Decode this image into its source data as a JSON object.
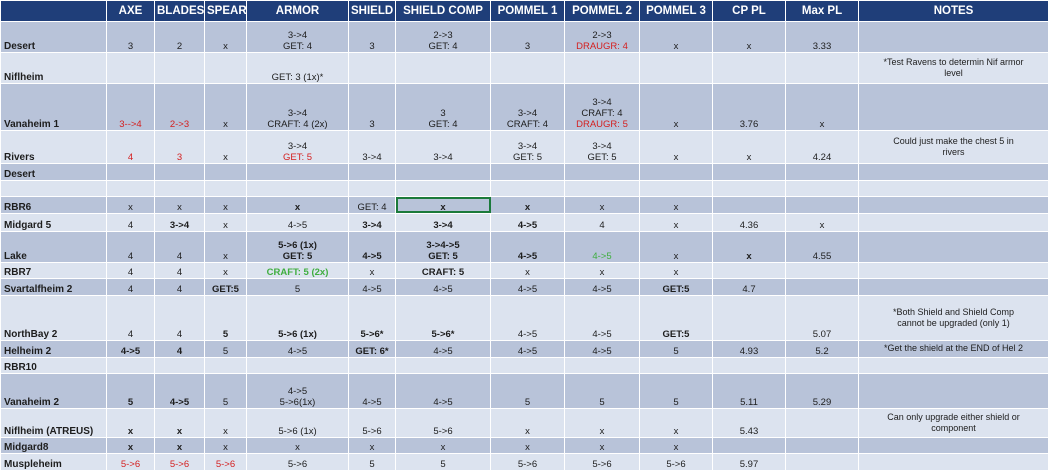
{
  "header": [
    "",
    "AXE",
    "BLADES",
    "SPEAR",
    "ARMOR",
    "SHIELD",
    "SHIELD COMP",
    "POMMEL 1",
    "POMMEL 2",
    "POMMEL 3",
    "CP PL",
    "Max PL",
    "NOTES"
  ],
  "rows": [
    {
      "name": "Desert",
      "cells": [
        {
          "lines": [
            "3"
          ]
        },
        {
          "lines": [
            "2"
          ]
        },
        {
          "lines": [
            "x"
          ]
        },
        {
          "lines": [
            "3->4",
            "GET: 4"
          ]
        },
        {
          "lines": [
            "3"
          ]
        },
        {
          "lines": [
            "2->3",
            "GET: 4"
          ]
        },
        {
          "lines": [
            "3"
          ]
        },
        {
          "lines": [
            "2->3",
            "DRAUGR: 4"
          ],
          "colors": [
            "",
            "red"
          ]
        },
        {
          "lines": [
            "x"
          ]
        },
        {
          "lines": [
            "x"
          ]
        },
        {
          "lines": [
            "3.33"
          ]
        },
        {
          "lines": []
        }
      ]
    },
    {
      "name": "Niflheim",
      "cells": [
        {
          "lines": []
        },
        {
          "lines": []
        },
        {
          "lines": []
        },
        {
          "lines": [
            "GET: 3 (1x)*"
          ]
        },
        {
          "lines": []
        },
        {
          "lines": []
        },
        {
          "lines": []
        },
        {
          "lines": []
        },
        {
          "lines": []
        },
        {
          "lines": []
        },
        {
          "lines": []
        },
        {
          "lines": [
            "*Test Ravens to determin Nif armor",
            "level"
          ]
        }
      ]
    },
    {
      "name": "Vanaheim 1",
      "cells": [
        {
          "lines": [
            "3-->4"
          ],
          "colors": [
            "red"
          ]
        },
        {
          "lines": [
            "2->3"
          ],
          "colors": [
            "red"
          ]
        },
        {
          "lines": [
            "x"
          ]
        },
        {
          "lines": [
            "3->4",
            "CRAFT: 4 (2x)"
          ]
        },
        {
          "lines": [
            "3"
          ]
        },
        {
          "lines": [
            "3",
            "GET: 4"
          ]
        },
        {
          "lines": [
            "3->4",
            "CRAFT: 4"
          ]
        },
        {
          "lines": [
            "3->4",
            "CRAFT: 4",
            "DRAUGR: 5"
          ],
          "colors": [
            "",
            "",
            "red"
          ]
        },
        {
          "lines": [
            "x"
          ]
        },
        {
          "lines": [
            "3.76"
          ]
        },
        {
          "lines": [
            "x"
          ]
        },
        {
          "lines": []
        }
      ]
    },
    {
      "name": "Rivers",
      "cells": [
        {
          "lines": [
            "4"
          ],
          "colors": [
            "red"
          ]
        },
        {
          "lines": [
            "3"
          ],
          "colors": [
            "red"
          ]
        },
        {
          "lines": [
            "x"
          ]
        },
        {
          "lines": [
            "3->4",
            "GET: 5"
          ],
          "colors": [
            "",
            "red"
          ]
        },
        {
          "lines": [
            "3->4"
          ]
        },
        {
          "lines": [
            "3->4"
          ]
        },
        {
          "lines": [
            "3->4",
            "GET: 5"
          ]
        },
        {
          "lines": [
            "3->4",
            "GET: 5"
          ]
        },
        {
          "lines": [
            "x"
          ]
        },
        {
          "lines": [
            "x"
          ]
        },
        {
          "lines": [
            "4.24"
          ]
        },
        {
          "lines": [
            "Could just make the chest 5 in",
            "rivers"
          ]
        }
      ]
    },
    {
      "name": "Desert",
      "cells": [
        {
          "lines": []
        },
        {
          "lines": []
        },
        {
          "lines": []
        },
        {
          "lines": []
        },
        {
          "lines": []
        },
        {
          "lines": []
        },
        {
          "lines": []
        },
        {
          "lines": []
        },
        {
          "lines": []
        },
        {
          "lines": []
        },
        {
          "lines": []
        },
        {
          "lines": []
        }
      ]
    },
    {
      "name": "",
      "cells": [
        {
          "lines": []
        },
        {
          "lines": []
        },
        {
          "lines": []
        },
        {
          "lines": []
        },
        {
          "lines": []
        },
        {
          "lines": []
        },
        {
          "lines": []
        },
        {
          "lines": []
        },
        {
          "lines": []
        },
        {
          "lines": []
        },
        {
          "lines": []
        },
        {
          "lines": []
        }
      ]
    },
    {
      "name": "RBR6",
      "cells": [
        {
          "lines": [
            "x"
          ]
        },
        {
          "lines": [
            "x"
          ]
        },
        {
          "lines": [
            "x"
          ]
        },
        {
          "lines": [
            "x"
          ],
          "bold": true
        },
        {
          "lines": [
            "GET: 4"
          ]
        },
        {
          "lines": [
            "x"
          ],
          "bold": true
        },
        {
          "lines": [
            "x"
          ],
          "bold": true
        },
        {
          "lines": [
            "x"
          ]
        },
        {
          "lines": [
            "x"
          ]
        },
        {
          "lines": []
        },
        {
          "lines": []
        },
        {
          "lines": []
        }
      ]
    },
    {
      "name": "Midgard 5",
      "cells": [
        {
          "lines": [
            "4"
          ]
        },
        {
          "lines": [
            "3->4"
          ],
          "bold": true
        },
        {
          "lines": [
            "x"
          ]
        },
        {
          "lines": [
            "4->5"
          ]
        },
        {
          "lines": [
            "3->4"
          ],
          "bold": true
        },
        {
          "lines": [
            "3->4"
          ],
          "bold": true
        },
        {
          "lines": [
            "4->5"
          ],
          "bold": true
        },
        {
          "lines": [
            "4"
          ]
        },
        {
          "lines": [
            "x"
          ]
        },
        {
          "lines": [
            "4.36"
          ]
        },
        {
          "lines": [
            "x"
          ]
        },
        {
          "lines": []
        }
      ]
    },
    {
      "name": "Lake",
      "cells": [
        {
          "lines": [
            "4"
          ]
        },
        {
          "lines": [
            "4"
          ]
        },
        {
          "lines": [
            "x"
          ]
        },
        {
          "lines": [
            "5->6 (1x)",
            "GET: 5"
          ],
          "bold": true
        },
        {
          "lines": [
            "4->5"
          ],
          "bold": true
        },
        {
          "lines": [
            "3->4->5",
            "GET: 5"
          ],
          "bold": true
        },
        {
          "lines": [
            "4->5"
          ],
          "bold": true
        },
        {
          "lines": [
            "4->5"
          ],
          "colors": [
            "green"
          ]
        },
        {
          "lines": [
            "x"
          ]
        },
        {
          "lines": [
            "x"
          ],
          "bold": true
        },
        {
          "lines": [
            "4.55"
          ]
        },
        {
          "lines": []
        }
      ]
    },
    {
      "name": "RBR7",
      "cells": [
        {
          "lines": [
            "4"
          ]
        },
        {
          "lines": [
            "4"
          ]
        },
        {
          "lines": [
            "x"
          ]
        },
        {
          "lines": [
            "CRAFT: 5 (2x)"
          ],
          "colors": [
            "green"
          ],
          "bold": true
        },
        {
          "lines": [
            "x"
          ]
        },
        {
          "lines": [
            "CRAFT: 5"
          ],
          "bold": true
        },
        {
          "lines": [
            "x"
          ]
        },
        {
          "lines": [
            "x"
          ]
        },
        {
          "lines": [
            "x"
          ]
        },
        {
          "lines": []
        },
        {
          "lines": []
        },
        {
          "lines": []
        }
      ]
    },
    {
      "name": "Svartalfheim 2",
      "cells": [
        {
          "lines": [
            "4"
          ]
        },
        {
          "lines": [
            "4"
          ]
        },
        {
          "lines": [
            "GET:5"
          ],
          "bold": true
        },
        {
          "lines": [
            "5"
          ]
        },
        {
          "lines": [
            "4->5"
          ]
        },
        {
          "lines": [
            "4->5"
          ]
        },
        {
          "lines": [
            "4->5"
          ]
        },
        {
          "lines": [
            "4->5"
          ]
        },
        {
          "lines": [
            "GET:5"
          ],
          "bold": true
        },
        {
          "lines": [
            "4.7"
          ]
        },
        {
          "lines": []
        },
        {
          "lines": []
        }
      ]
    },
    {
      "name": "NorthBay 2",
      "cells": [
        {
          "lines": [
            "4"
          ]
        },
        {
          "lines": [
            "4"
          ]
        },
        {
          "lines": [
            "5"
          ],
          "bold": true
        },
        {
          "lines": [
            "5->6 (1x)"
          ],
          "bold": true
        },
        {
          "lines": [
            "5->6*"
          ],
          "bold": true
        },
        {
          "lines": [
            "5->6*"
          ],
          "bold": true
        },
        {
          "lines": [
            "4->5"
          ]
        },
        {
          "lines": [
            "4->5"
          ]
        },
        {
          "lines": [
            "GET:5"
          ],
          "bold": true
        },
        {
          "lines": []
        },
        {
          "lines": [
            "5.07"
          ]
        },
        {
          "lines": [
            "*Both Shield and Shield Comp",
            "cannot be upgraded (only 1)"
          ]
        }
      ]
    },
    {
      "name": "Helheim 2",
      "cells": [
        {
          "lines": [
            "4->5"
          ],
          "bold": true
        },
        {
          "lines": [
            "4"
          ],
          "bold": true
        },
        {
          "lines": [
            "5"
          ]
        },
        {
          "lines": [
            "4->5"
          ]
        },
        {
          "lines": [
            "GET: 6*"
          ],
          "bold": true
        },
        {
          "lines": [
            "4->5"
          ]
        },
        {
          "lines": [
            "4->5"
          ]
        },
        {
          "lines": [
            "4->5"
          ]
        },
        {
          "lines": [
            "5"
          ]
        },
        {
          "lines": [
            "4.93"
          ]
        },
        {
          "lines": [
            "5.2"
          ]
        },
        {
          "lines": [
            "*Get the shield at the END of Hel 2"
          ]
        }
      ]
    },
    {
      "name": "RBR10",
      "cells": [
        {
          "lines": []
        },
        {
          "lines": []
        },
        {
          "lines": []
        },
        {
          "lines": []
        },
        {
          "lines": []
        },
        {
          "lines": []
        },
        {
          "lines": []
        },
        {
          "lines": []
        },
        {
          "lines": []
        },
        {
          "lines": []
        },
        {
          "lines": []
        },
        {
          "lines": []
        }
      ]
    },
    {
      "name": "Vanaheim 2",
      "cells": [
        {
          "lines": [
            "5"
          ],
          "bold": true
        },
        {
          "lines": [
            "4->5"
          ],
          "bold": true
        },
        {
          "lines": [
            "5"
          ]
        },
        {
          "lines": [
            "4->5",
            "5->6(1x)"
          ]
        },
        {
          "lines": [
            "4->5"
          ]
        },
        {
          "lines": [
            "4->5"
          ]
        },
        {
          "lines": [
            "5"
          ]
        },
        {
          "lines": [
            "5"
          ]
        },
        {
          "lines": [
            "5"
          ]
        },
        {
          "lines": [
            "5.11"
          ]
        },
        {
          "lines": [
            "5.29"
          ]
        },
        {
          "lines": []
        }
      ]
    },
    {
      "name": "Niflheim (ATREUS)",
      "cells": [
        {
          "lines": [
            "x"
          ],
          "bold": true
        },
        {
          "lines": [
            "x"
          ],
          "bold": true
        },
        {
          "lines": [
            "x"
          ]
        },
        {
          "lines": [
            "5->6 (1x)"
          ]
        },
        {
          "lines": [
            "5->6"
          ]
        },
        {
          "lines": [
            "5->6"
          ]
        },
        {
          "lines": [
            "x"
          ]
        },
        {
          "lines": [
            "x"
          ]
        },
        {
          "lines": [
            "x"
          ]
        },
        {
          "lines": [
            "5.43"
          ]
        },
        {
          "lines": []
        },
        {
          "lines": [
            "Can only upgrade either shield or",
            "component"
          ]
        }
      ]
    },
    {
      "name": "Midgard8",
      "cells": [
        {
          "lines": [
            "x"
          ],
          "bold": true
        },
        {
          "lines": [
            "x"
          ],
          "bold": true
        },
        {
          "lines": [
            "x"
          ]
        },
        {
          "lines": [
            "x"
          ]
        },
        {
          "lines": [
            "x"
          ]
        },
        {
          "lines": [
            "x"
          ]
        },
        {
          "lines": [
            "x"
          ]
        },
        {
          "lines": [
            "x"
          ]
        },
        {
          "lines": [
            "x"
          ]
        },
        {
          "lines": []
        },
        {
          "lines": []
        },
        {
          "lines": []
        }
      ]
    },
    {
      "name": "Muspleheim",
      "cells": [
        {
          "lines": [
            "5->6"
          ],
          "colors": [
            "red"
          ]
        },
        {
          "lines": [
            "5->6"
          ],
          "colors": [
            "red"
          ]
        },
        {
          "lines": [
            "5->6"
          ],
          "colors": [
            "red"
          ]
        },
        {
          "lines": [
            "5->6"
          ]
        },
        {
          "lines": [
            "5"
          ]
        },
        {
          "lines": [
            "5"
          ]
        },
        {
          "lines": [
            "5->6"
          ]
        },
        {
          "lines": [
            "5->6"
          ]
        },
        {
          "lines": [
            "5->6"
          ]
        },
        {
          "lines": [
            "5.97"
          ]
        },
        {
          "lines": []
        },
        {
          "lines": []
        }
      ]
    }
  ]
}
